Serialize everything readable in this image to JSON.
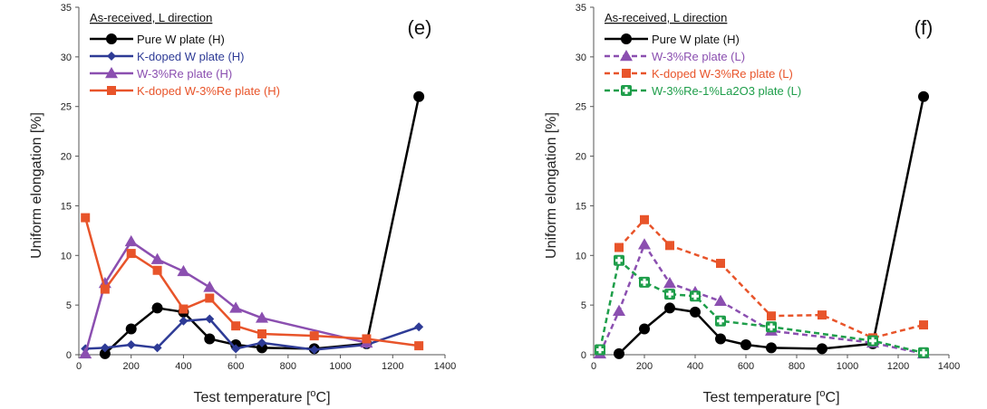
{
  "chart_data": [
    {
      "type": "line",
      "panel_label": "(e)",
      "legend_title": "As-received,  L direction",
      "xlabel": "Test temperature [oC]",
      "xlabel_main": "Test temperature [",
      "xlabel_sup": "o",
      "xlabel_end": "C]",
      "ylabel": "Uniform elongation [%]",
      "xlim": [
        0,
        1400
      ],
      "ylim": [
        0,
        35
      ],
      "x_ticks": [
        "0",
        "200",
        "400",
        "600",
        "800",
        "1000",
        "1200",
        "1400"
      ],
      "y_ticks": [
        "0",
        "5",
        "10",
        "15",
        "20",
        "25",
        "30",
        "35"
      ],
      "grid": false,
      "legend_position": "top-left",
      "series": [
        {
          "name": "Pure W plate (H)",
          "color": "#000000",
          "marker": "circle",
          "dash": "solid",
          "points": [
            [
              100,
              0.1
            ],
            [
              200,
              2.6
            ],
            [
              300,
              4.7
            ],
            [
              400,
              4.3
            ],
            [
              500,
              1.6
            ],
            [
              600,
              1.0
            ],
            [
              700,
              0.7
            ],
            [
              900,
              0.6
            ],
            [
              1100,
              1.1
            ],
            [
              1300,
              26
            ]
          ]
        },
        {
          "name": "K-doped W plate (H)",
          "color": "#2e3b96",
          "marker": "diamond",
          "dash": "solid",
          "points": [
            [
              25,
              0.6
            ],
            [
              100,
              0.7
            ],
            [
              200,
              1.0
            ],
            [
              300,
              0.7
            ],
            [
              400,
              3.4
            ],
            [
              500,
              3.6
            ],
            [
              600,
              0.6
            ],
            [
              700,
              1.2
            ],
            [
              900,
              0.5
            ],
            [
              1100,
              1.0
            ],
            [
              1300,
              2.8
            ]
          ]
        },
        {
          "name": "W-3%Re plate (H)",
          "color": "#8b4fb0",
          "marker": "triangle",
          "dash": "solid",
          "points": [
            [
              25,
              0.1
            ],
            [
              100,
              7.2
            ],
            [
              200,
              11.4
            ],
            [
              300,
              9.6
            ],
            [
              400,
              8.4
            ],
            [
              500,
              6.8
            ],
            [
              600,
              4.7
            ],
            [
              700,
              3.7
            ],
            [
              1100,
              1.2
            ]
          ]
        },
        {
          "name": "K-doped W-3%Re plate (H)",
          "color": "#e8542a",
          "marker": "square",
          "dash": "solid",
          "points": [
            [
              25,
              13.8
            ],
            [
              100,
              6.6
            ],
            [
              200,
              10.2
            ],
            [
              300,
              8.5
            ],
            [
              400,
              4.6
            ],
            [
              500,
              5.7
            ],
            [
              600,
              2.9
            ],
            [
              700,
              2.1
            ],
            [
              900,
              1.9
            ],
            [
              1100,
              1.6
            ],
            [
              1300,
              0.9
            ]
          ]
        }
      ]
    },
    {
      "type": "line",
      "panel_label": "(f)",
      "legend_title": "As-received,  L direction",
      "xlabel": "Test temperature [oC]",
      "xlabel_main": "Test temperature [",
      "xlabel_sup": "o",
      "xlabel_end": "C]",
      "ylabel": "Uniform elongation [%]",
      "xlim": [
        0,
        1400
      ],
      "ylim": [
        0,
        35
      ],
      "x_ticks": [
        "0",
        "200",
        "400",
        "600",
        "800",
        "1000",
        "1200",
        "1400"
      ],
      "y_ticks": [
        "0",
        "5",
        "10",
        "15",
        "20",
        "25",
        "30",
        "35"
      ],
      "grid": false,
      "legend_position": "top-left",
      "series": [
        {
          "name": "Pure W plate (H)",
          "color": "#000000",
          "marker": "circle",
          "dash": "solid",
          "points": [
            [
              100,
              0.1
            ],
            [
              200,
              2.6
            ],
            [
              300,
              4.7
            ],
            [
              400,
              4.3
            ],
            [
              500,
              1.6
            ],
            [
              600,
              1.0
            ],
            [
              700,
              0.7
            ],
            [
              900,
              0.6
            ],
            [
              1100,
              1.1
            ],
            [
              1300,
              26
            ]
          ]
        },
        {
          "name": "W-3%Re plate (L)",
          "color": "#8b4fb0",
          "marker": "triangle",
          "dash": "dashed",
          "points": [
            [
              25,
              0.1
            ],
            [
              100,
              4.4
            ],
            [
              200,
              11.1
            ],
            [
              300,
              7.2
            ],
            [
              400,
              6.3
            ],
            [
              500,
              5.4
            ],
            [
              700,
              2.4
            ],
            [
              1100,
              1.2
            ],
            [
              1300,
              0.1
            ]
          ]
        },
        {
          "name": "K-doped W-3%Re plate (L)",
          "color": "#e8542a",
          "marker": "square",
          "dash": "dashed",
          "points": [
            [
              100,
              10.8
            ],
            [
              200,
              13.6
            ],
            [
              300,
              11.0
            ],
            [
              500,
              9.2
            ],
            [
              700,
              3.9
            ],
            [
              900,
              4.0
            ],
            [
              1100,
              1.7
            ],
            [
              1300,
              3.0
            ]
          ]
        },
        {
          "name": "W-3%Re-1%La2O3 plate (L)",
          "color": "#1e9e4a",
          "marker": "cross",
          "dash": "dashed",
          "points": [
            [
              25,
              0.5
            ],
            [
              100,
              9.5
            ],
            [
              200,
              7.3
            ],
            [
              300,
              6.1
            ],
            [
              400,
              5.9
            ],
            [
              500,
              3.4
            ],
            [
              700,
              2.8
            ],
            [
              1100,
              1.4
            ],
            [
              1300,
              0.2
            ]
          ]
        }
      ]
    }
  ]
}
